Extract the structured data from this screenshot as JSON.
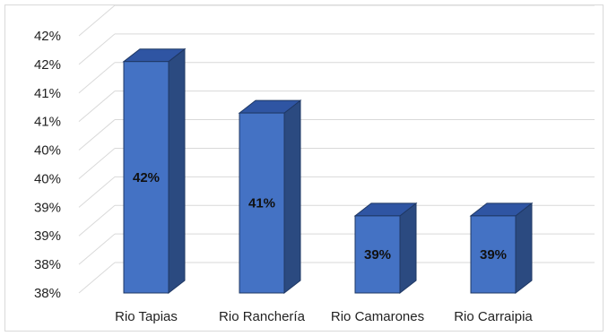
{
  "chart_data": {
    "type": "bar",
    "categories": [
      "Rio Tapias",
      "Rio Ranchería",
      "Rio Camarones",
      "Rio Carraipia"
    ],
    "values": [
      42.2,
      41.2,
      39.2,
      39.2
    ],
    "data_labels": [
      "42%",
      "41%",
      "39%",
      "39%"
    ],
    "y_tick_labels": [
      "38%",
      "38%",
      "39%",
      "39%",
      "40%",
      "40%",
      "41%",
      "41%",
      "42%",
      "42%"
    ],
    "ylim": [
      37.7,
      42.7
    ],
    "grid": true,
    "colors": {
      "bar_front": "#4472c4",
      "bar_top": "#2f55a3",
      "bar_side": "#2b4a80",
      "bar_edge": "#1f3864",
      "grid": "#d9d9d9"
    }
  }
}
